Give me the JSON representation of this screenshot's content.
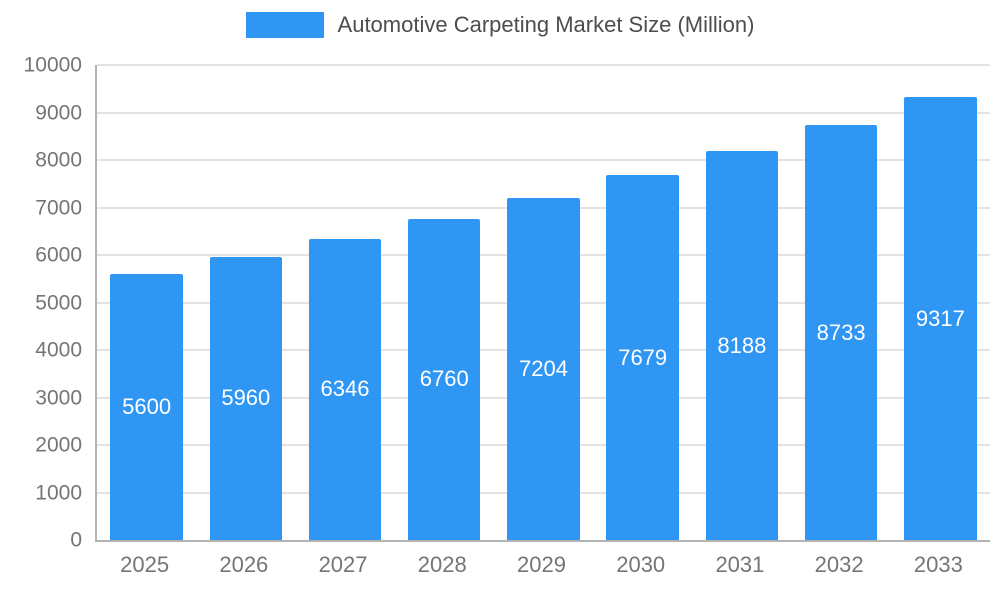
{
  "chart_data": {
    "type": "bar",
    "title": "Automotive Carpeting Market Size (Million)",
    "categories": [
      "2025",
      "2026",
      "2027",
      "2028",
      "2029",
      "2030",
      "2031",
      "2032",
      "2033"
    ],
    "values": [
      5600,
      5960,
      6346,
      6760,
      7204,
      7679,
      8188,
      8733,
      9317
    ],
    "xlabel": "",
    "ylabel": "",
    "ylim": [
      0,
      10000
    ],
    "ytick_step": 1000,
    "grid": true,
    "legend_position": "top-center",
    "bar_color": "#2f96f3",
    "value_label_color": "#ffffff",
    "axis_text_color": "#757575",
    "legend_text_color": "#4d4d4d",
    "gridline_color": "#e3e3e3",
    "axis_line_color": "#b3b3b3"
  }
}
